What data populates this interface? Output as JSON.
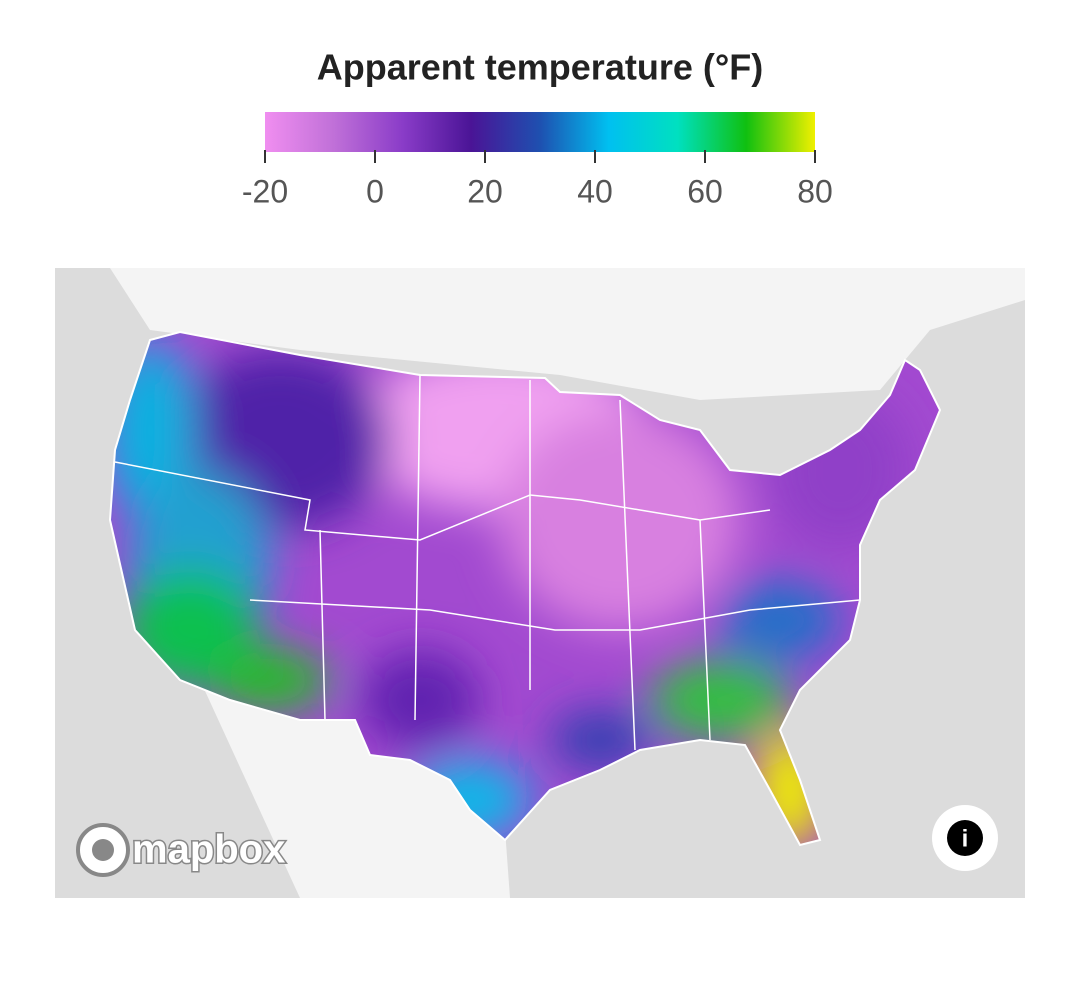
{
  "legend": {
    "title": "Apparent temperature (°F)",
    "range": [
      -20,
      80
    ],
    "ticks": [
      -20,
      0,
      20,
      40,
      60,
      80
    ],
    "colors": [
      "#f08ef0",
      "#c070d8",
      "#8a3cc8",
      "#4a1496",
      "#1e50b0",
      "#00c0f0",
      "#00e0c0",
      "#10c010",
      "#f0f000"
    ]
  },
  "attribution": "mapbox"
}
